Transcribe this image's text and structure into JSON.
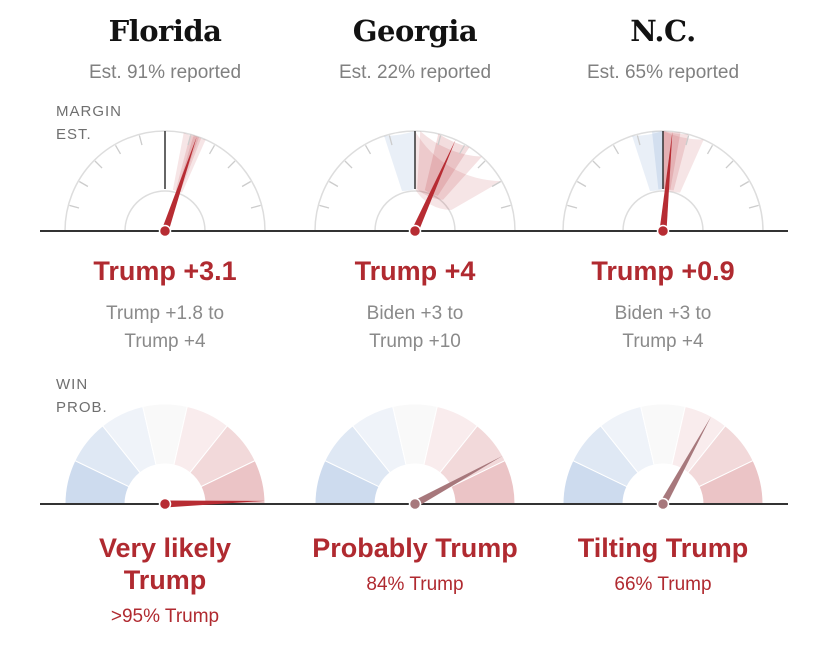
{
  "row_labels": {
    "margin": [
      "MARGIN",
      "EST."
    ],
    "win": [
      "WIN",
      "PROB."
    ]
  },
  "colors": {
    "rep": "#b72c33",
    "dem": "#4d7fc1",
    "needle_win_moderate": "#a7787c",
    "axis": "#333333",
    "grid": "#dddddd"
  },
  "chart_data": [
    {
      "type": "gauge",
      "state": "Florida",
      "reported": "Est. 91% reported",
      "margin": {
        "headline": "Trump +3.1",
        "range_line1": "Trump +1.8 to",
        "range_line2": "Trump +4",
        "value": 3.1,
        "range": [
          1.8,
          4
        ],
        "band_color": "rep"
      },
      "win_prob": {
        "headline_lines": [
          "Very likely",
          "Trump"
        ],
        "label": ">95% Trump",
        "trump_pct": 99,
        "needle_color": "rep"
      }
    },
    {
      "type": "gauge",
      "state": "Georgia",
      "reported": "Est. 22% reported",
      "margin": {
        "headline": "Trump +4",
        "range_line1": "Biden +3 to",
        "range_line2": "Trump +10",
        "value": 4,
        "range": [
          -3,
          10
        ],
        "band_color": "both"
      },
      "win_prob": {
        "headline_lines": [
          "Probably Trump"
        ],
        "label": "84% Trump",
        "trump_pct": 84,
        "needle_color": "needle_win_moderate"
      }
    },
    {
      "type": "gauge",
      "state": "N.C.",
      "reported": "Est. 65% reported",
      "margin": {
        "headline": "Trump +0.9",
        "range_line1": "Biden +3 to",
        "range_line2": "Trump +4",
        "value": 0.9,
        "range": [
          -3,
          4
        ],
        "band_color": "both"
      },
      "win_prob": {
        "headline_lines": [
          "Tilting Trump"
        ],
        "label": "66% Trump",
        "trump_pct": 66,
        "needle_color": "needle_win_moderate"
      }
    }
  ]
}
